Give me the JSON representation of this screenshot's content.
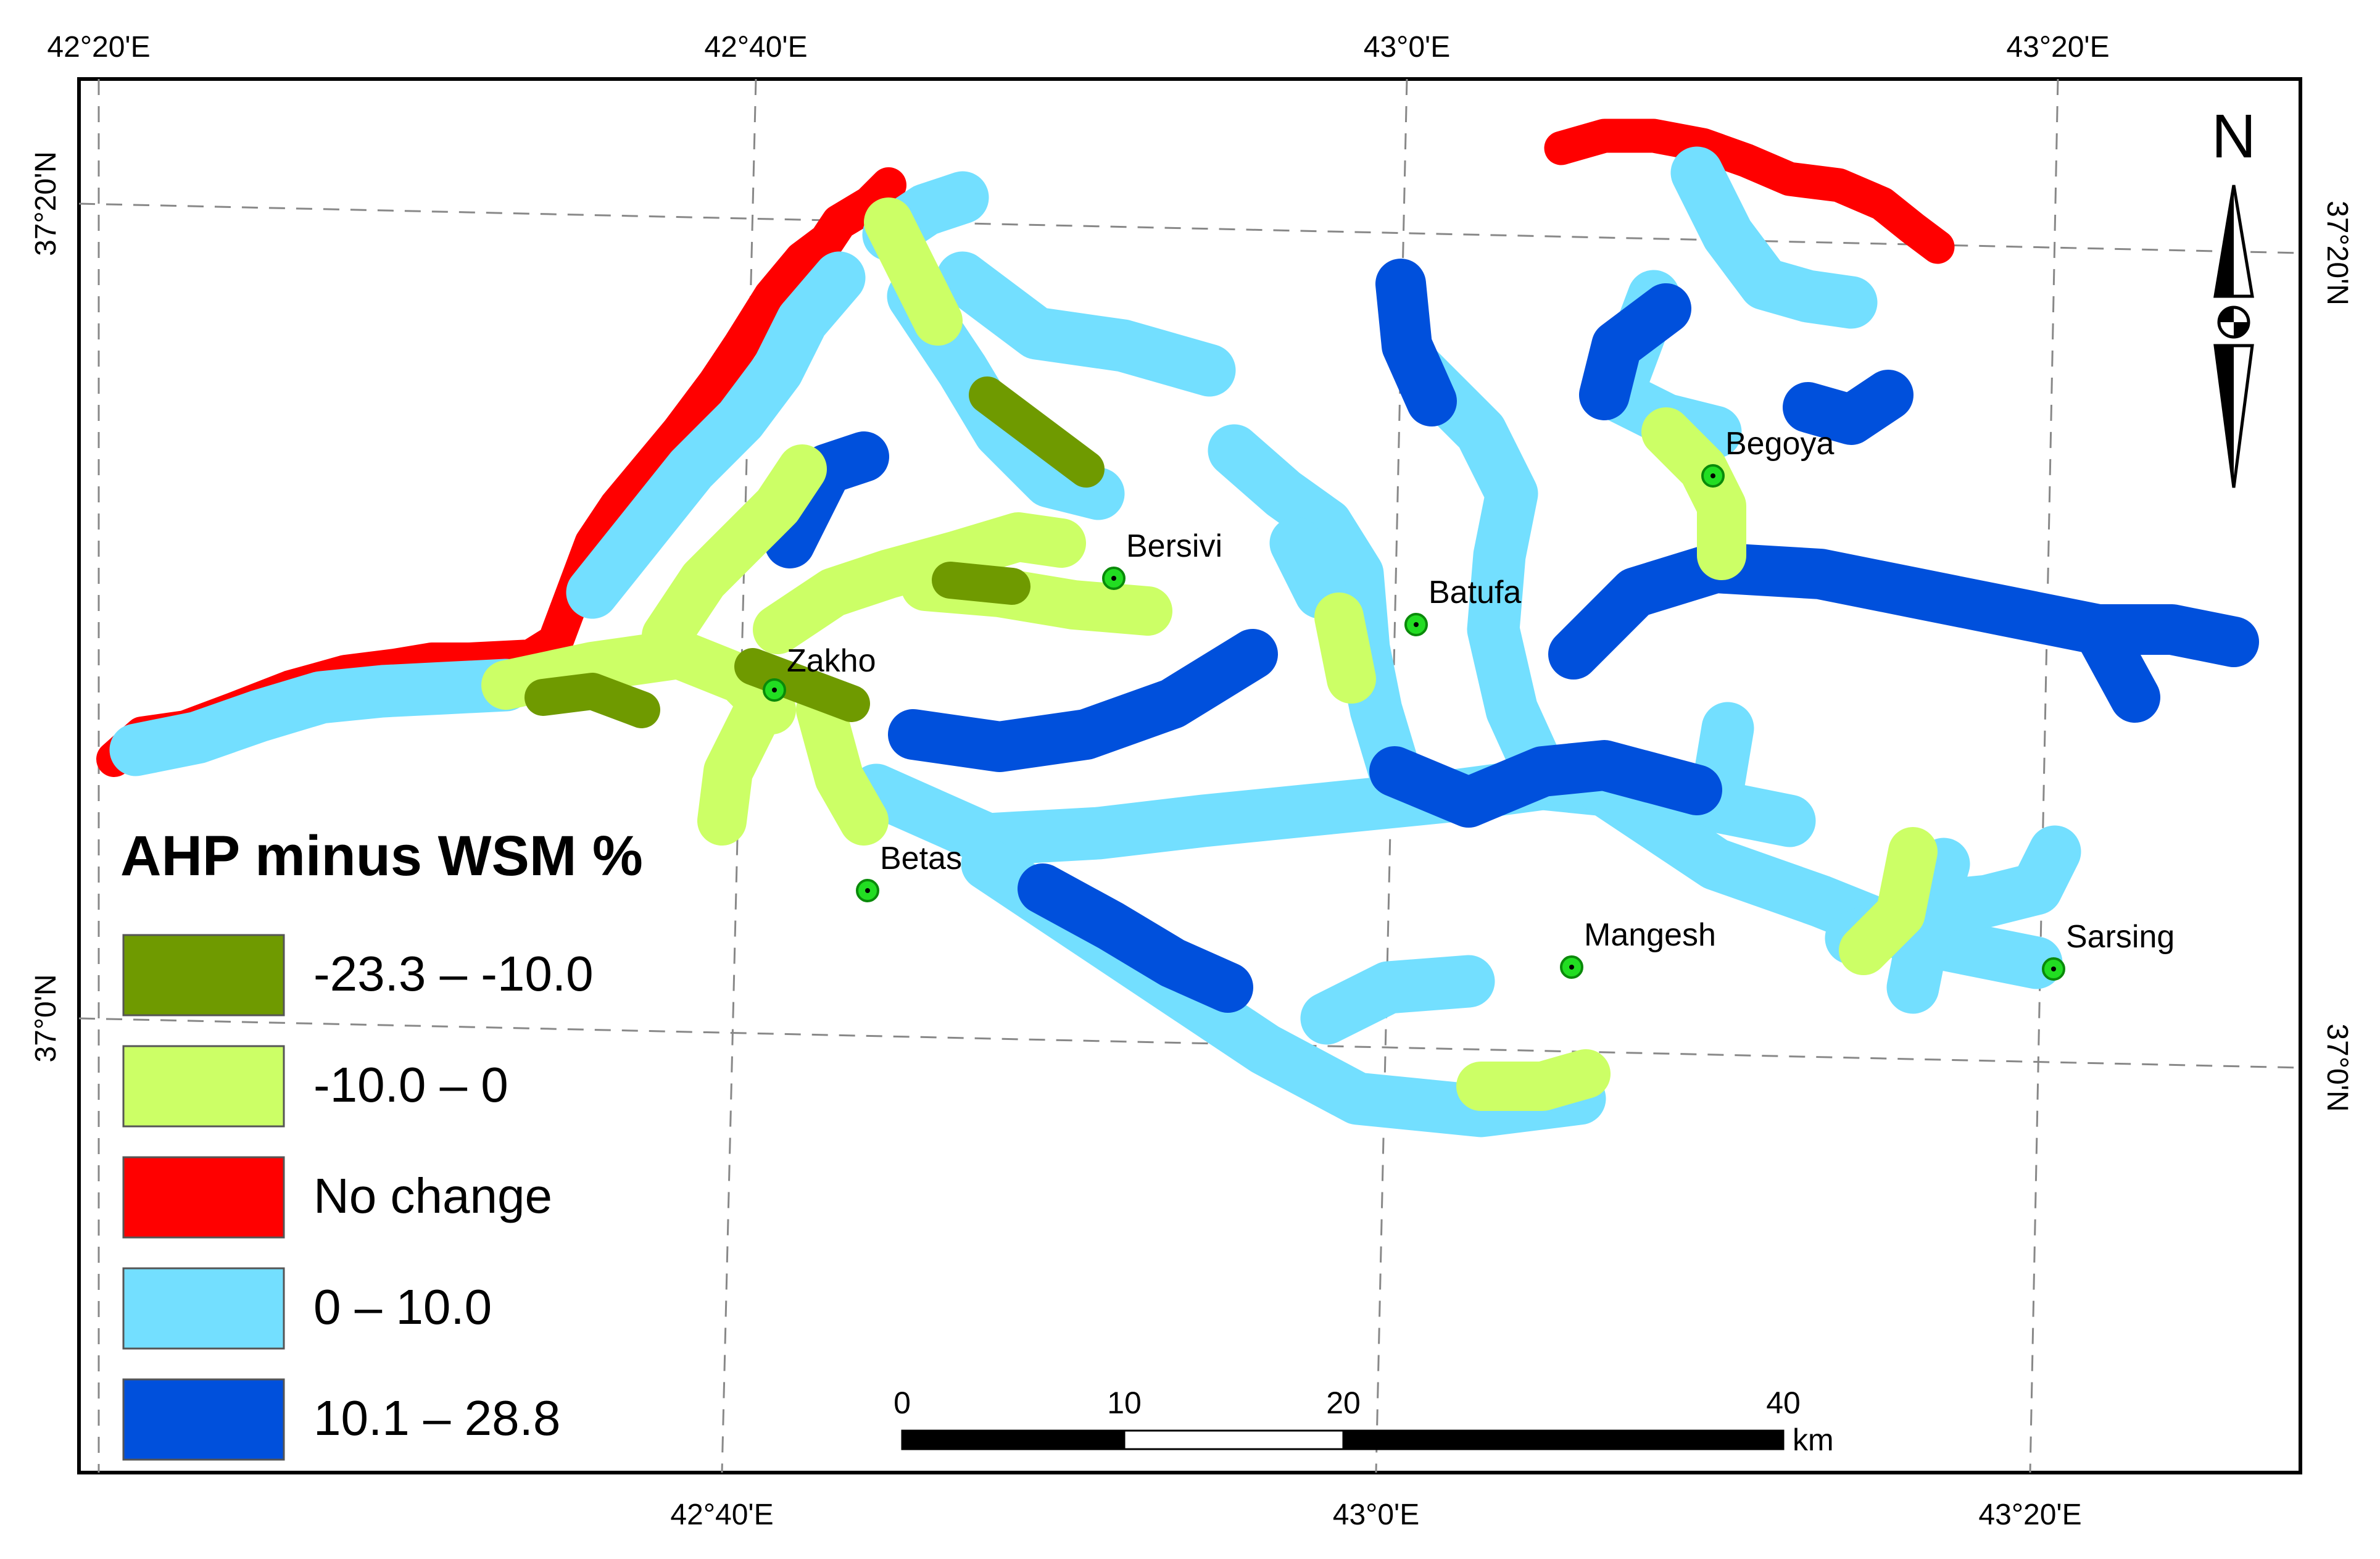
{
  "graticule": {
    "top_lon_labels": [
      "42°20'E",
      "42°40'E",
      "43°0'E",
      "43°20'E"
    ],
    "bottom_lon_labels": [
      "42°40'E",
      "43°0'E",
      "43°20'E"
    ],
    "left_lat_labels": [
      "37°20'N",
      "37°0'N"
    ],
    "right_lat_labels": [
      "37°20'N",
      "37°0'N"
    ]
  },
  "places": [
    {
      "name": "Zakho"
    },
    {
      "name": "Bersivi"
    },
    {
      "name": "Batufa"
    },
    {
      "name": "Begoya"
    },
    {
      "name": "Betas"
    },
    {
      "name": "Mangesh"
    },
    {
      "name": "Sarsing"
    }
  ],
  "legend": {
    "title": "AHP minus WSM %",
    "items": [
      {
        "label": "-23.3 – -10.0",
        "color": "#6f9a00"
      },
      {
        "label": "-10.0 – 0",
        "color": "#ccff66"
      },
      {
        "label": "No change",
        "color": "#ff0000"
      },
      {
        "label": "0 – 10.0",
        "color": "#73dfff"
      },
      {
        "label": "10.1 – 28.8",
        "color": "#0050dc"
      }
    ]
  },
  "scale_bar": {
    "ticks": [
      "0",
      "10",
      "20",
      "40"
    ],
    "unit": "km"
  },
  "north_arrow": {
    "label": "N"
  },
  "colors": {
    "place_dot": "#22dd22",
    "frame": "#000000",
    "graticule": "#888888"
  }
}
